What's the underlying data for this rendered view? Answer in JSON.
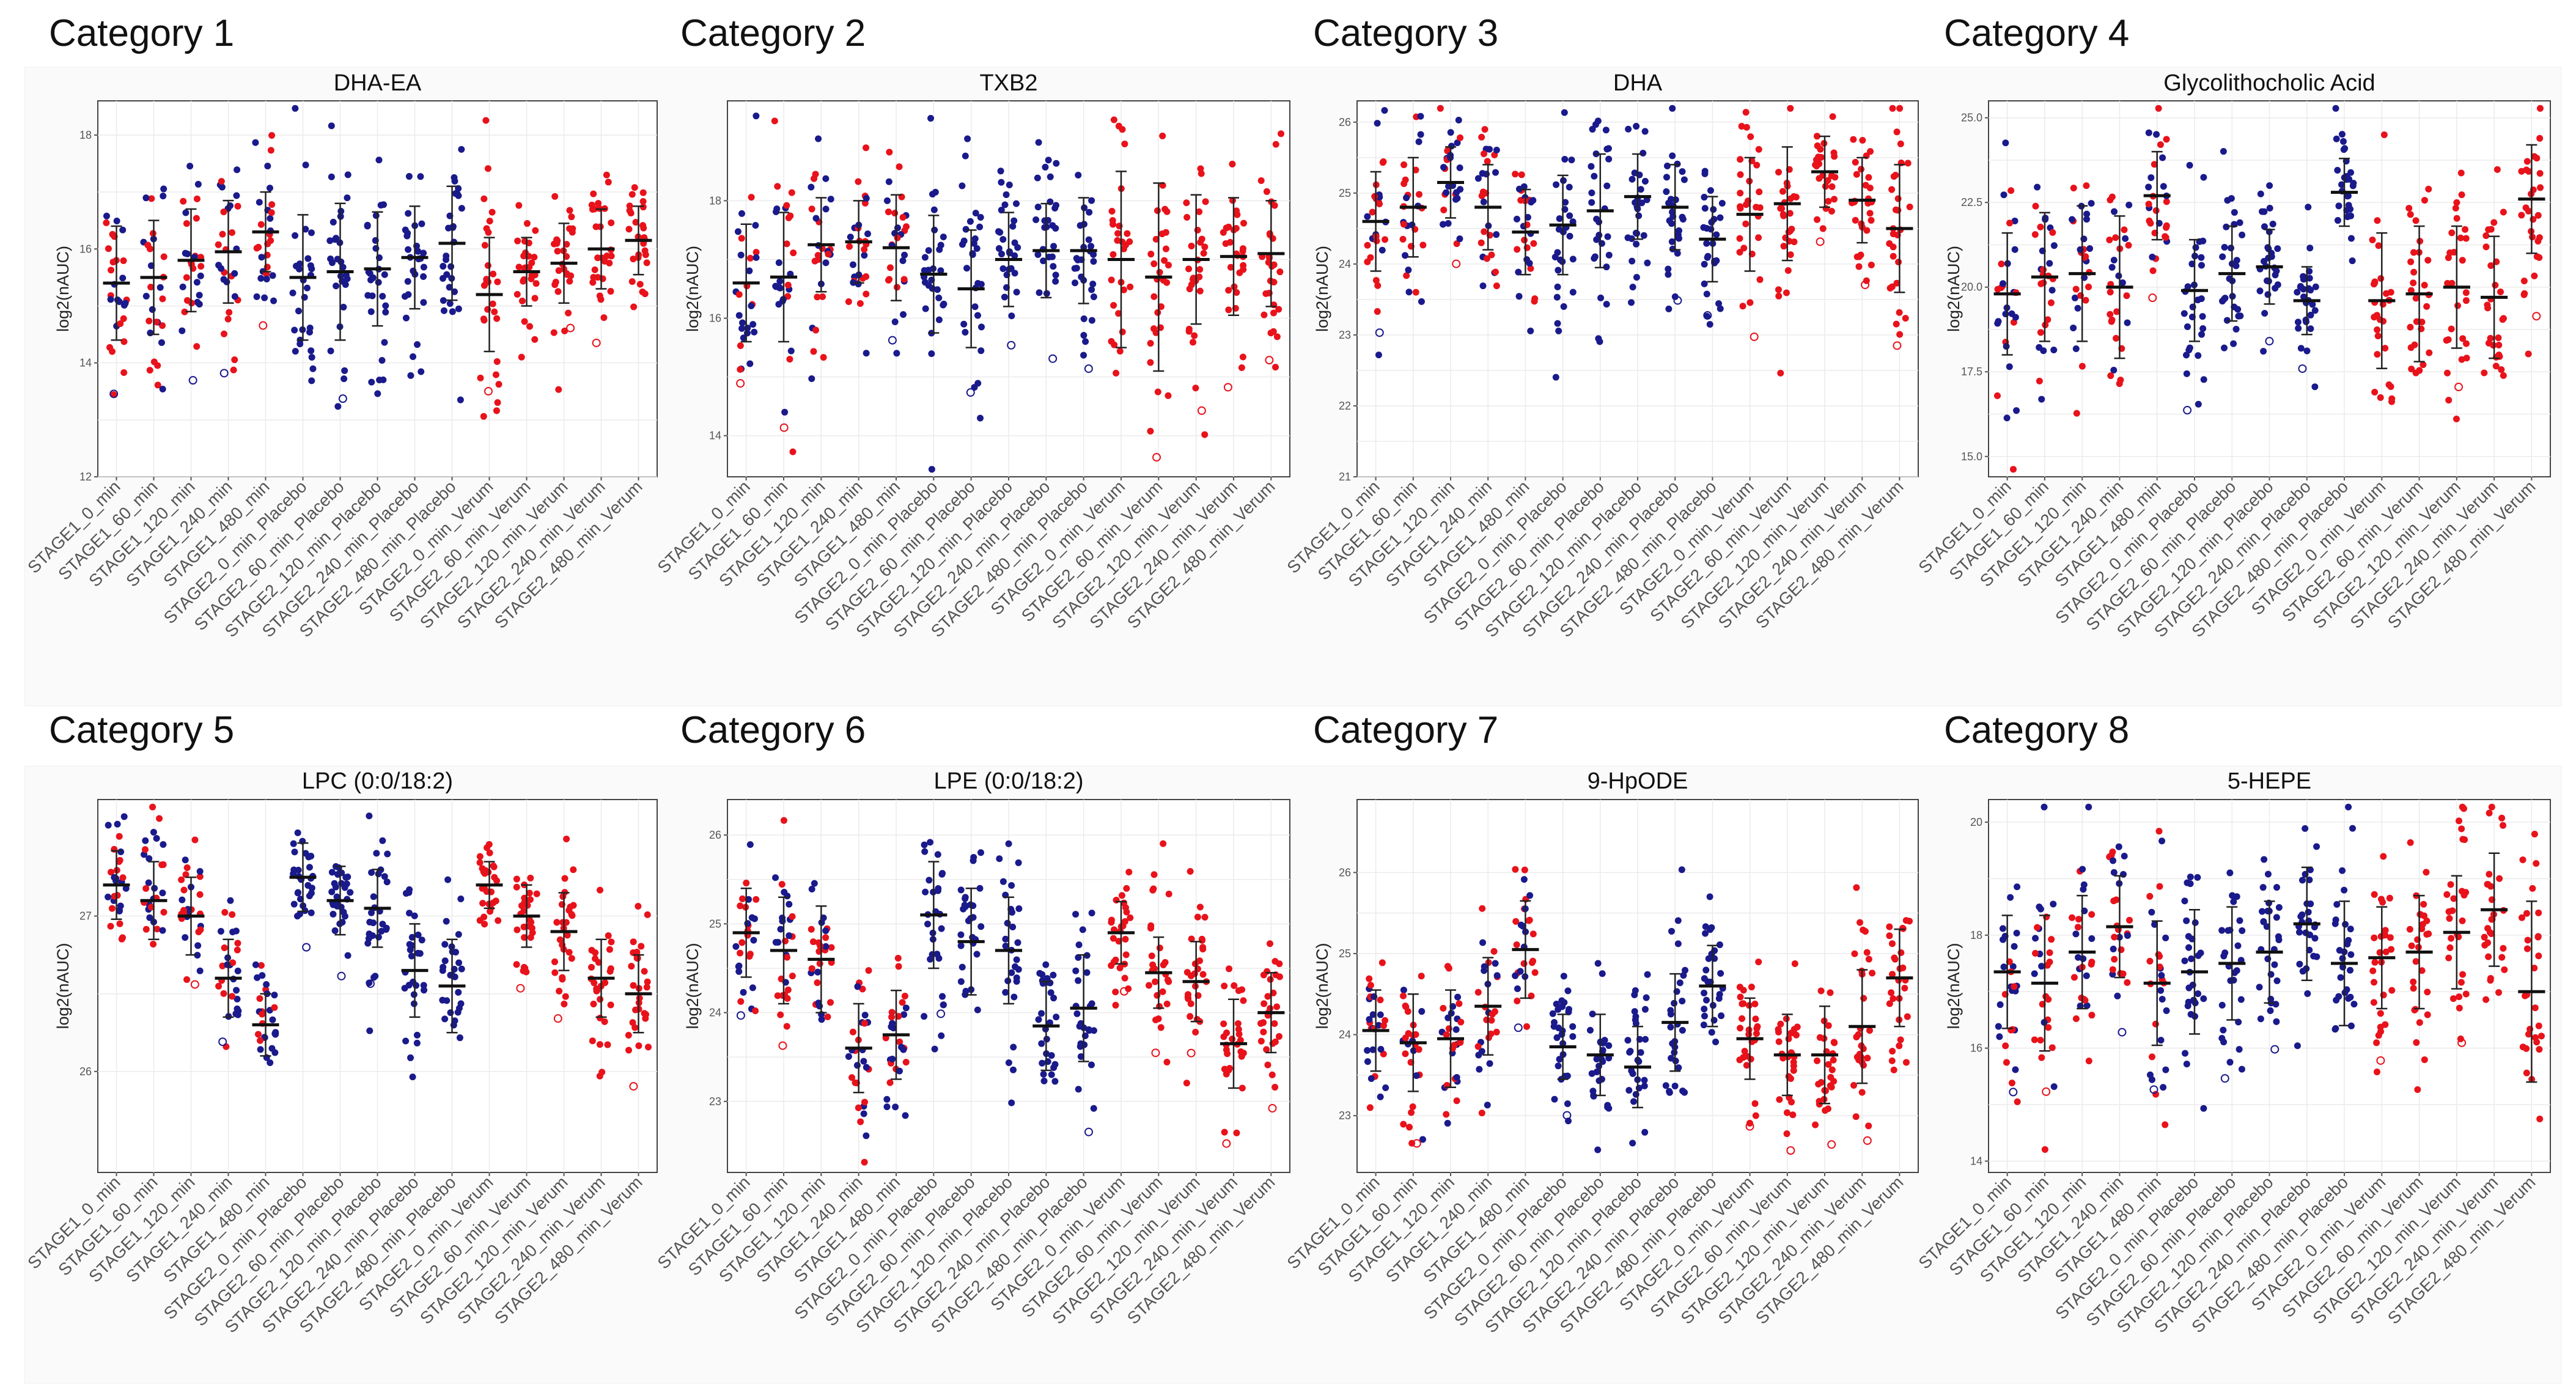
{
  "colors": {
    "stage1": "#1a1a8c",
    "placebo": "#1a1a8c",
    "verum": "#e8121b",
    "mean": "#111111",
    "grid": "#ebebeb",
    "frame": "#444444"
  },
  "groups": [
    "STAGE1_0_min",
    "STAGE1_60_min",
    "STAGE1_120_min",
    "STAGE1_240_min",
    "STAGE1_480_min",
    "STAGE2_0_min_Placebo",
    "STAGE2_60_min_Placebo",
    "STAGE2_120_min_Placebo",
    "STAGE2_240_min_Placebo",
    "STAGE2_480_min_Placebo",
    "STAGE2_0_min_Verum",
    "STAGE2_60_min_Verum",
    "STAGE2_120_min_Verum",
    "STAGE2_240_min_Verum",
    "STAGE2_480_min_Verum"
  ],
  "chart_data": [
    {
      "type": "scatter",
      "category": "Category  1",
      "title": "DHA-EA",
      "ylabel": "log2(nAUC)",
      "ylim": [
        12,
        18.6
      ],
      "yticks": [
        12,
        14,
        16,
        18
      ],
      "means": [
        15.4,
        15.5,
        15.8,
        15.95,
        16.3,
        15.5,
        15.6,
        15.65,
        15.85,
        16.1,
        15.2,
        15.6,
        15.75,
        16.0,
        16.15
      ],
      "sd": [
        1.0,
        1.0,
        0.9,
        0.9,
        0.7,
        1.1,
        1.2,
        1.0,
        0.9,
        1.0,
        1.0,
        0.6,
        0.7,
        0.7,
        0.6
      ],
      "colors": [
        "mix",
        "mix",
        "mix",
        "mix",
        "mix",
        "b",
        "b",
        "b",
        "b",
        "b",
        "r",
        "r",
        "r",
        "r",
        "r"
      ]
    },
    {
      "type": "scatter",
      "category": "Category  2",
      "title": "TXB2",
      "ylabel": "log2(nAUC)",
      "ylim": [
        13.3,
        19.7
      ],
      "yticks": [
        14,
        16,
        18
      ],
      "means": [
        16.6,
        16.7,
        17.25,
        17.3,
        17.2,
        16.75,
        16.5,
        17.0,
        17.15,
        17.15,
        17.0,
        16.7,
        17.0,
        17.05,
        17.1
      ],
      "sd": [
        1.0,
        1.1,
        0.8,
        0.7,
        0.9,
        1.0,
        1.0,
        0.8,
        0.8,
        0.9,
        1.5,
        1.6,
        1.1,
        1.0,
        0.9
      ],
      "colors": [
        "mix",
        "mix",
        "mix",
        "mix",
        "mix",
        "b",
        "b",
        "b",
        "b",
        "b",
        "r",
        "r",
        "r",
        "r",
        "r"
      ]
    },
    {
      "type": "scatter",
      "category": "Category  3",
      "title": "DHA",
      "ylabel": "log2(nAUC)",
      "ylim": [
        21,
        26.3
      ],
      "yticks": [
        21,
        22,
        23,
        24,
        25,
        26
      ],
      "means": [
        24.6,
        24.8,
        25.15,
        24.8,
        24.45,
        24.55,
        24.75,
        24.95,
        24.8,
        24.35,
        24.7,
        24.85,
        25.3,
        24.9,
        24.5
      ],
      "sd": [
        0.7,
        0.7,
        0.5,
        0.6,
        0.6,
        0.7,
        0.8,
        0.6,
        0.6,
        0.6,
        0.8,
        0.8,
        0.5,
        0.6,
        0.9
      ],
      "colors": [
        "mix",
        "mix",
        "mix",
        "mix",
        "mix",
        "b",
        "b",
        "b",
        "b",
        "b",
        "r",
        "r",
        "r",
        "r",
        "r"
      ]
    },
    {
      "type": "scatter",
      "category": "Category  4",
      "title": "Glycolithocholic Acid",
      "ylabel": "log2(nAUC)",
      "ylim": [
        14.4,
        25.5
      ],
      "yticks": [
        15.0,
        17.5,
        20.0,
        22.5,
        25.0
      ],
      "means": [
        19.8,
        20.3,
        20.4,
        20.0,
        22.7,
        19.9,
        20.4,
        20.6,
        19.6,
        22.8,
        19.6,
        19.8,
        20.0,
        19.7,
        22.6
      ],
      "sd": [
        1.8,
        1.9,
        2.0,
        2.1,
        1.3,
        1.5,
        1.4,
        1.1,
        1.0,
        1.0,
        2.0,
        2.0,
        1.8,
        1.8,
        1.6
      ],
      "colors": [
        "mix",
        "mix",
        "mix",
        "mix",
        "mix",
        "b",
        "b",
        "b",
        "b",
        "b",
        "r",
        "r",
        "r",
        "r",
        "r"
      ]
    },
    {
      "type": "scatter",
      "category": "Category  5",
      "title": "LPC (0:0/18:2)",
      "ylabel": "log2(nAUC)",
      "ylim": [
        25.35,
        27.75
      ],
      "yticks": [
        26,
        27
      ],
      "means": [
        27.2,
        27.1,
        27.0,
        26.6,
        26.3,
        27.25,
        27.1,
        27.05,
        26.65,
        26.55,
        27.2,
        27.0,
        26.9,
        26.6,
        26.5
      ],
      "sd": [
        0.22,
        0.25,
        0.25,
        0.25,
        0.2,
        0.22,
        0.22,
        0.25,
        0.3,
        0.3,
        0.15,
        0.2,
        0.25,
        0.25,
        0.25
      ],
      "colors": [
        "mix",
        "mix",
        "mix",
        "mix",
        "mix",
        "b",
        "b",
        "b",
        "b",
        "b",
        "r",
        "r",
        "r",
        "r",
        "r"
      ]
    },
    {
      "type": "scatter",
      "category": "Category  6",
      "title": "LPE (0:0/18:2)",
      "ylabel": "log2(nAUC)",
      "ylim": [
        22.2,
        26.4
      ],
      "yticks": [
        23,
        24,
        25,
        26
      ],
      "means": [
        24.9,
        24.7,
        24.6,
        23.6,
        23.75,
        25.1,
        24.8,
        24.7,
        23.85,
        24.05,
        24.9,
        24.45,
        24.35,
        23.65,
        24.0
      ],
      "sd": [
        0.5,
        0.6,
        0.6,
        0.5,
        0.5,
        0.6,
        0.6,
        0.6,
        0.5,
        0.6,
        0.35,
        0.4,
        0.45,
        0.5,
        0.45
      ],
      "colors": [
        "mix",
        "mix",
        "mix",
        "mix",
        "mix",
        "b",
        "b",
        "b",
        "b",
        "b",
        "r",
        "r",
        "r",
        "r",
        "r"
      ]
    },
    {
      "type": "scatter",
      "category": "Category  7",
      "title": "9-HpODE",
      "ylabel": "log2(nAUC)",
      "ylim": [
        22.3,
        26.9
      ],
      "yticks": [
        23,
        24,
        25,
        26
      ],
      "means": [
        24.05,
        23.9,
        23.95,
        24.35,
        25.05,
        23.85,
        23.75,
        23.6,
        24.15,
        24.6,
        23.95,
        23.75,
        23.75,
        24.1,
        24.7
      ],
      "sd": [
        0.5,
        0.6,
        0.6,
        0.6,
        0.6,
        0.4,
        0.5,
        0.5,
        0.6,
        0.5,
        0.5,
        0.5,
        0.6,
        0.7,
        0.6
      ],
      "colors": [
        "mix",
        "mix",
        "mix",
        "mix",
        "mix",
        "b",
        "b",
        "b",
        "b",
        "b",
        "r",
        "r",
        "r",
        "r",
        "r"
      ]
    },
    {
      "type": "scatter",
      "category": "Category  8",
      "title": "5-HEPE",
      "ylabel": "log2(nAUC)",
      "ylim": [
        13.8,
        20.4
      ],
      "yticks": [
        14,
        16,
        18,
        20
      ],
      "means": [
        17.35,
        17.15,
        17.7,
        18.15,
        17.15,
        17.35,
        17.5,
        17.7,
        18.2,
        17.5,
        17.6,
        17.7,
        18.05,
        18.45,
        17.0
      ],
      "sd": [
        1.0,
        1.2,
        1.0,
        0.9,
        1.1,
        1.1,
        1.0,
        0.9,
        1.0,
        1.1,
        0.9,
        1.0,
        1.0,
        1.0,
        1.6
      ],
      "colors": [
        "mix",
        "mix",
        "mix",
        "mix",
        "mix",
        "b",
        "b",
        "b",
        "b",
        "b",
        "r",
        "r",
        "r",
        "r",
        "r"
      ]
    }
  ]
}
